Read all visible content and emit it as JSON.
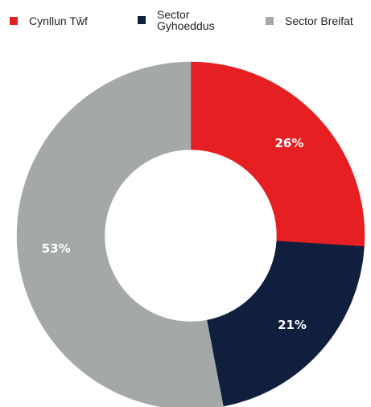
{
  "chart_data": {
    "type": "pie",
    "donut": true,
    "title": "",
    "legend_position": "top",
    "series": [
      {
        "name": "Cynllun Tŵf",
        "value": 26,
        "label": "26%",
        "color": "#e51f22"
      },
      {
        "name": "Sector\nGyhoeddus",
        "value": 21,
        "label": "21%",
        "color": "#0f1f3d"
      },
      {
        "name": "Sector Breifat",
        "value": 53,
        "label": "53%",
        "color": "#a4a9a8"
      }
    ]
  }
}
